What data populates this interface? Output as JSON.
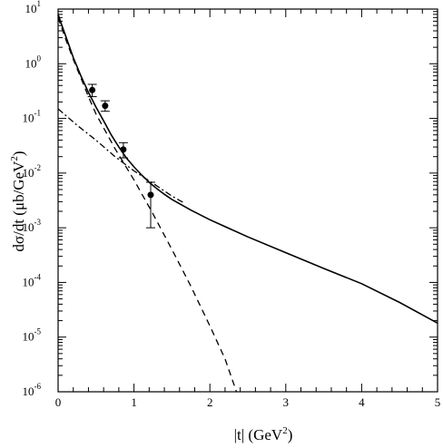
{
  "chart_data": {
    "type": "line",
    "xlabel": "|t|   (GeV",
    "xlabel_sup": "2",
    "xlabel_end": ")",
    "ylabel": "dσ/dt   (μb/GeV",
    "ylabel_sup": "2",
    "ylabel_end": ")",
    "xlim": [
      0,
      5
    ],
    "ylim_log10": [
      -6,
      1
    ],
    "y_scale": "log",
    "x_ticks": [
      {
        "value": 0,
        "label": "0"
      },
      {
        "value": 1,
        "label": "1"
      },
      {
        "value": 2,
        "label": "2"
      },
      {
        "value": 3,
        "label": "3"
      },
      {
        "value": 4,
        "label": "4"
      },
      {
        "value": 5,
        "label": "5"
      }
    ],
    "y_ticks": [
      {
        "exp": -6,
        "base": "10",
        "sup": "-6"
      },
      {
        "exp": -5,
        "base": "10",
        "sup": "-5"
      },
      {
        "exp": -4,
        "base": "10",
        "sup": "-4"
      },
      {
        "exp": -3,
        "base": "10",
        "sup": "-3"
      },
      {
        "exp": -2,
        "base": "10",
        "sup": "-2"
      },
      {
        "exp": -1,
        "base": "10",
        "sup": "-1"
      },
      {
        "exp": 0,
        "base": "10",
        "sup": "0"
      },
      {
        "exp": 1,
        "base": "10",
        "sup": "1"
      }
    ],
    "series": [
      {
        "style": "solid",
        "points": [
          [
            0,
            8.0
          ],
          [
            0.05,
            5.0
          ],
          [
            0.1,
            3.2
          ],
          [
            0.2,
            1.3
          ],
          [
            0.3,
            0.6
          ],
          [
            0.4,
            0.3
          ],
          [
            0.5,
            0.16
          ],
          [
            0.6,
            0.09
          ],
          [
            0.7,
            0.05
          ],
          [
            0.8,
            0.03
          ],
          [
            0.9,
            0.019
          ],
          [
            1.0,
            0.013
          ],
          [
            1.1,
            0.0092
          ],
          [
            1.2,
            0.0068
          ],
          [
            1.3,
            0.0052
          ],
          [
            1.4,
            0.0041
          ],
          [
            1.5,
            0.0033
          ],
          [
            1.75,
            0.0021
          ],
          [
            2.0,
            0.0014
          ],
          [
            2.5,
            0.00068
          ],
          [
            3.0,
            0.00035
          ],
          [
            3.5,
            0.00018
          ],
          [
            4.0,
            9.5e-05
          ],
          [
            4.5,
            4.3e-05
          ],
          [
            5.0,
            1.8e-05
          ]
        ]
      },
      {
        "style": "dashed",
        "points": [
          [
            0,
            7.0
          ],
          [
            0.1,
            2.8
          ],
          [
            0.2,
            1.2
          ],
          [
            0.3,
            0.55
          ],
          [
            0.4,
            0.25
          ],
          [
            0.5,
            0.12
          ],
          [
            0.75,
            0.028
          ],
          [
            1.0,
            0.0075
          ],
          [
            1.25,
            0.0018
          ],
          [
            1.5,
            0.0004
          ],
          [
            1.75,
            8.5e-05
          ],
          [
            2.0,
            1.6e-05
          ],
          [
            2.2,
            4e-06
          ],
          [
            2.35,
            1e-06
          ]
        ]
      },
      {
        "style": "dash-dot",
        "points": [
          [
            0,
            0.15
          ],
          [
            0.25,
            0.075
          ],
          [
            0.5,
            0.04
          ],
          [
            0.75,
            0.02
          ],
          [
            1.0,
            0.011
          ],
          [
            1.25,
            0.0065
          ],
          [
            1.5,
            0.0038
          ],
          [
            1.65,
            0.0029
          ]
        ]
      }
    ],
    "data_points": [
      {
        "x": 0.45,
        "y": 0.33,
        "y_low": 0.25,
        "y_high": 0.42
      },
      {
        "x": 0.62,
        "y": 0.17,
        "y_low": 0.135,
        "y_high": 0.21
      },
      {
        "x": 0.86,
        "y": 0.027,
        "y_low": 0.019,
        "y_high": 0.036
      },
      {
        "x": 1.22,
        "y": 0.004,
        "y_low": 0.001,
        "y_high": 0.0068
      }
    ]
  }
}
